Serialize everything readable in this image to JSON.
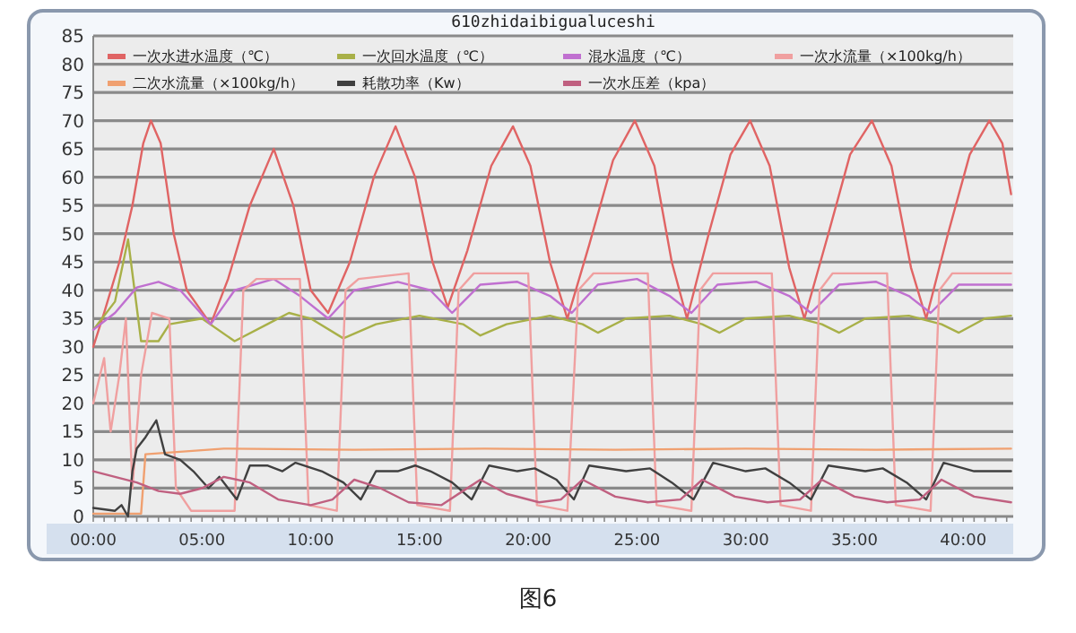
{
  "chart_data": {
    "type": "line",
    "title": "610zhidaibigualuceshi",
    "annotations": [
      "图6"
    ],
    "xlim": [
      0,
      42.3
    ],
    "ylim": [
      0,
      85
    ],
    "xticks": [
      {
        "value": 0,
        "label": "00:00"
      },
      {
        "value": 5,
        "label": "05:00"
      },
      {
        "value": 10,
        "label": "10:00"
      },
      {
        "value": 15,
        "label": "15:00"
      },
      {
        "value": 20,
        "label": "20:00"
      },
      {
        "value": 25,
        "label": "25:00"
      },
      {
        "value": 30,
        "label": "30:00"
      },
      {
        "value": 35,
        "label": "35:00"
      },
      {
        "value": 40,
        "label": "40:00"
      }
    ],
    "yticks": [
      0,
      5,
      10,
      15,
      20,
      25,
      30,
      35,
      40,
      45,
      50,
      55,
      60,
      65,
      70,
      75,
      80,
      85
    ],
    "grid": "y",
    "legend": "top",
    "line_style": "solid",
    "series": [
      {
        "name": "一次水进水温度（℃）",
        "color": "#e06464",
        "x": [
          0,
          0.5,
          1.2,
          1.8,
          2.3,
          2.65,
          3.1,
          3.7,
          4.3,
          5.4,
          6.2,
          7.2,
          8.3,
          9.2,
          10,
          10.8,
          11.8,
          12.9,
          13.9,
          14.8,
          15.6,
          16.3,
          17.2,
          18.3,
          19.3,
          20.1,
          21,
          21.8,
          22.8,
          23.9,
          24.9,
          25.8,
          26.6,
          27.3,
          28.3,
          29.3,
          30.2,
          31.1,
          32,
          32.7,
          33.8,
          34.8,
          35.8,
          36.7,
          37.6,
          38.3,
          39.3,
          40.3,
          41.2,
          41.8,
          42.2
        ],
        "values": [
          30,
          36,
          45,
          55,
          66,
          70,
          66,
          50,
          40,
          34,
          42,
          55,
          65,
          55,
          40,
          36,
          45,
          60,
          69,
          60,
          45,
          37,
          47,
          62,
          69,
          62,
          45,
          35,
          48,
          63,
          70,
          62,
          45,
          35,
          50,
          64,
          70,
          62,
          44,
          35,
          50,
          64,
          70,
          62,
          44,
          35,
          50,
          64,
          70,
          66,
          57
        ]
      },
      {
        "name": "一次回水温度（℃）",
        "color": "#a8b048",
        "x": [
          0,
          1,
          1.6,
          1.9,
          2.2,
          3,
          3.5,
          5,
          6.5,
          8,
          9,
          10,
          11.5,
          13,
          15,
          17,
          17.8,
          19,
          21,
          22.5,
          23.2,
          24.5,
          26.5,
          28,
          28.8,
          30,
          32,
          33.5,
          34.3,
          35.5,
          37.5,
          39,
          39.8,
          41,
          42.2
        ],
        "values": [
          33,
          38,
          49,
          40,
          31,
          31,
          34,
          35,
          31,
          34,
          36,
          35,
          31.5,
          34,
          35.5,
          34,
          32,
          34,
          35.5,
          34,
          32.5,
          35,
          35.5,
          34,
          32.5,
          35,
          35.5,
          34,
          32.5,
          35,
          35.5,
          34,
          32.5,
          35,
          35.5
        ]
      },
      {
        "name": "混水温度（℃）",
        "color": "#c070d0",
        "x": [
          0,
          1,
          2,
          3,
          4,
          5.4,
          6.5,
          8.3,
          9.5,
          10.8,
          12,
          14,
          15.5,
          16.5,
          17.8,
          19.5,
          21,
          22,
          23.2,
          25,
          26.5,
          27.5,
          28.7,
          30.5,
          32,
          33,
          34.3,
          36,
          37.5,
          38.5,
          39.8,
          42.2
        ],
        "values": [
          33,
          36,
          40.5,
          41.5,
          40,
          34,
          40,
          42,
          39,
          35,
          40,
          41.5,
          40,
          36,
          41,
          41.5,
          39,
          36,
          41,
          42,
          39,
          36,
          41,
          41.5,
          39,
          36,
          41,
          41.5,
          39,
          36,
          41,
          41
        ]
      },
      {
        "name": "一次水流量（×100kg/h）",
        "color": "#f0a0a0",
        "x": [
          0,
          0.5,
          0.8,
          1.2,
          1.5,
          1.8,
          2.2,
          2.7,
          3.5,
          3.8,
          4.5,
          6.5,
          6.9,
          7.5,
          9.5,
          9.9,
          11.2,
          11.6,
          12.2,
          14.5,
          14.9,
          16.4,
          16.8,
          17.5,
          20,
          20.4,
          21.8,
          22.3,
          23,
          25.5,
          25.9,
          27.5,
          27.9,
          28.5,
          31.2,
          31.6,
          33,
          33.4,
          34,
          36.5,
          36.9,
          38.5,
          38.9,
          39.5,
          42.2
        ],
        "values": [
          20,
          28,
          15,
          25,
          35,
          5,
          25,
          36,
          35,
          5,
          1,
          1,
          40,
          42,
          42,
          2,
          1,
          40,
          42,
          43,
          2,
          1,
          40,
          43,
          43,
          2,
          1,
          40,
          43,
          43,
          2,
          1,
          40,
          43,
          43,
          2,
          1,
          40,
          43,
          43,
          2,
          1,
          40,
          43,
          43
        ]
      },
      {
        "name": "二次水流量（×100kg/h）",
        "color": "#f0a070",
        "x": [
          0,
          2.2,
          2.4,
          6,
          12,
          18,
          24,
          30,
          36,
          42.2
        ],
        "values": [
          0.5,
          0.5,
          11,
          12,
          11.8,
          12,
          11.8,
          12,
          11.8,
          12
        ]
      },
      {
        "name": "耗散功率（Kw）",
        "color": "#404040",
        "x": [
          0,
          1,
          1.3,
          1.6,
          1.8,
          2,
          2.4,
          2.9,
          3.3,
          4,
          4.6,
          5.3,
          5.8,
          6.2,
          6.6,
          7.2,
          8,
          8.7,
          9.3,
          10.5,
          11.5,
          12.3,
          13,
          14,
          14.8,
          15.5,
          16.5,
          17.4,
          18.2,
          19.5,
          20.3,
          21.3,
          22.1,
          22.8,
          24.5,
          25.6,
          26.6,
          27.6,
          28.5,
          30,
          30.9,
          32,
          33,
          33.8,
          35.5,
          36.3,
          37.4,
          38.3,
          39.1,
          40.5,
          42.2
        ],
        "values": [
          1.5,
          1,
          2,
          0,
          8,
          12,
          14,
          17,
          11,
          10,
          8,
          5,
          7,
          5,
          3,
          9,
          9,
          8,
          9.5,
          8,
          6,
          3,
          8,
          8,
          9,
          8,
          6,
          3,
          9,
          8,
          8.5,
          6.5,
          3,
          9,
          8,
          8.5,
          6,
          3,
          9.5,
          8,
          8.5,
          6,
          3,
          9,
          8,
          8.5,
          6,
          3,
          9.5,
          8,
          8
        ]
      },
      {
        "name": "一次水压差（kpa）",
        "color": "#c06080",
        "x": [
          0,
          1,
          2,
          3,
          4,
          5,
          6,
          7.2,
          8.5,
          10,
          11,
          12,
          13.2,
          14.5,
          16,
          17,
          17.8,
          19,
          20.5,
          21.5,
          22.5,
          24,
          25.5,
          27,
          28,
          29.5,
          31,
          32.5,
          33.5,
          35,
          36.5,
          38,
          39,
          40.5,
          42.2
        ],
        "values": [
          8,
          7,
          6,
          4.5,
          4,
          5,
          7,
          6,
          3,
          2,
          3,
          6.5,
          5,
          2.5,
          2,
          4.5,
          6.5,
          4,
          2.5,
          3,
          6.5,
          3.5,
          2.5,
          3,
          6.5,
          3.5,
          2.5,
          3,
          6.5,
          3.5,
          2.5,
          3,
          6.5,
          3.5,
          2.5
        ]
      }
    ]
  }
}
